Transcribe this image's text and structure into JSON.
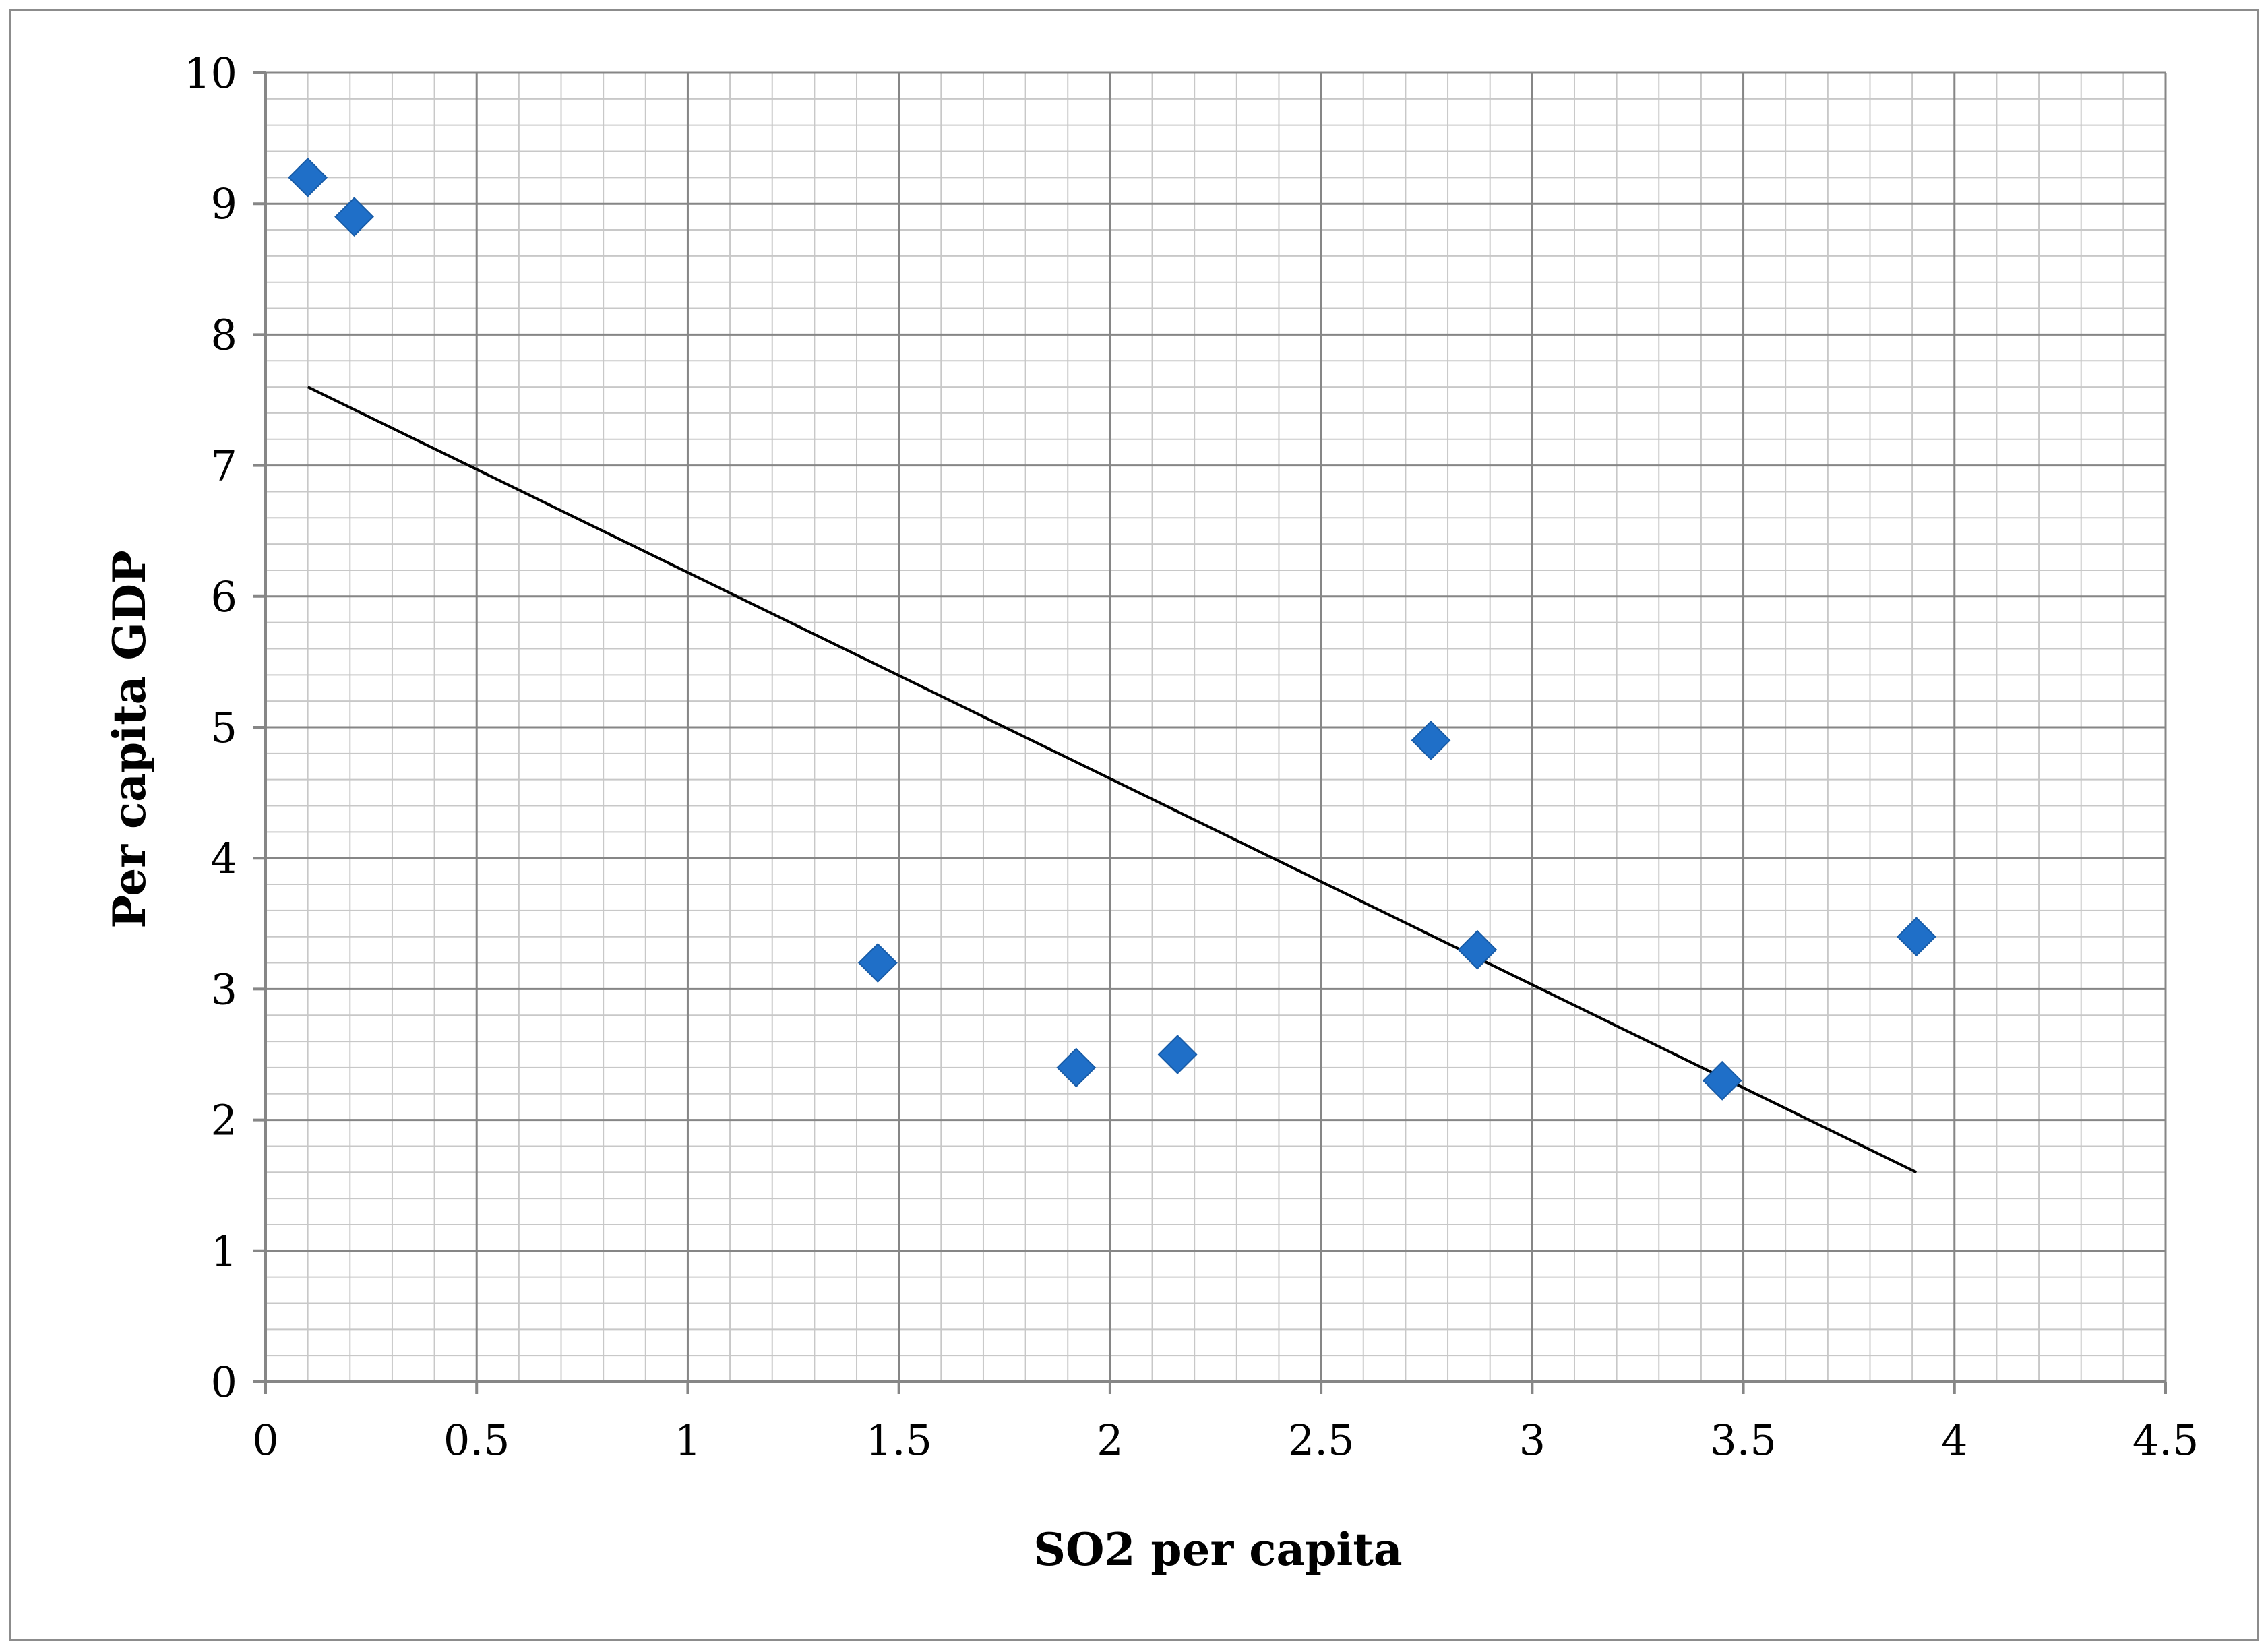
{
  "chart_data": {
    "type": "scatter",
    "title": "",
    "xlabel": "SO2 per capita",
    "ylabel": "Per capita GDP",
    "xlim": [
      0,
      4.5
    ],
    "ylim": [
      0,
      10
    ],
    "x_ticks": [
      "0",
      "0.5",
      "1",
      "1.5",
      "2",
      "2.5",
      "3",
      "3.5",
      "4",
      "4.5"
    ],
    "y_ticks": [
      "0",
      "1",
      "2",
      "3",
      "4",
      "5",
      "6",
      "7",
      "8",
      "9",
      "10"
    ],
    "x_tick_values": [
      0,
      0.5,
      1,
      1.5,
      2,
      2.5,
      3,
      3.5,
      4,
      4.5
    ],
    "y_tick_values": [
      0,
      1,
      2,
      3,
      4,
      5,
      6,
      7,
      8,
      9,
      10
    ],
    "grid": {
      "major": true,
      "minor": true,
      "x_minor_step": 0.1,
      "y_minor_step": 0.2
    },
    "legend": "none",
    "series": [
      {
        "marker": "diamond",
        "color": "#1f6fc8",
        "points": [
          {
            "x": 0.1,
            "y": 9.2
          },
          {
            "x": 0.21,
            "y": 8.9
          },
          {
            "x": 1.45,
            "y": 3.2
          },
          {
            "x": 1.92,
            "y": 2.4
          },
          {
            "x": 2.16,
            "y": 2.5
          },
          {
            "x": 2.76,
            "y": 4.9
          },
          {
            "x": 2.87,
            "y": 3.3
          },
          {
            "x": 3.45,
            "y": 2.3
          },
          {
            "x": 3.91,
            "y": 3.4
          }
        ]
      }
    ],
    "trendline": {
      "type": "linear",
      "color": "#000000",
      "x": [
        0.1,
        3.91
      ],
      "y": [
        7.6,
        1.6
      ]
    },
    "colors": {
      "grid_major": "#868686",
      "grid_minor": "#c8c8c8",
      "axis": "#868686",
      "frame": "#8c8c8c"
    }
  }
}
